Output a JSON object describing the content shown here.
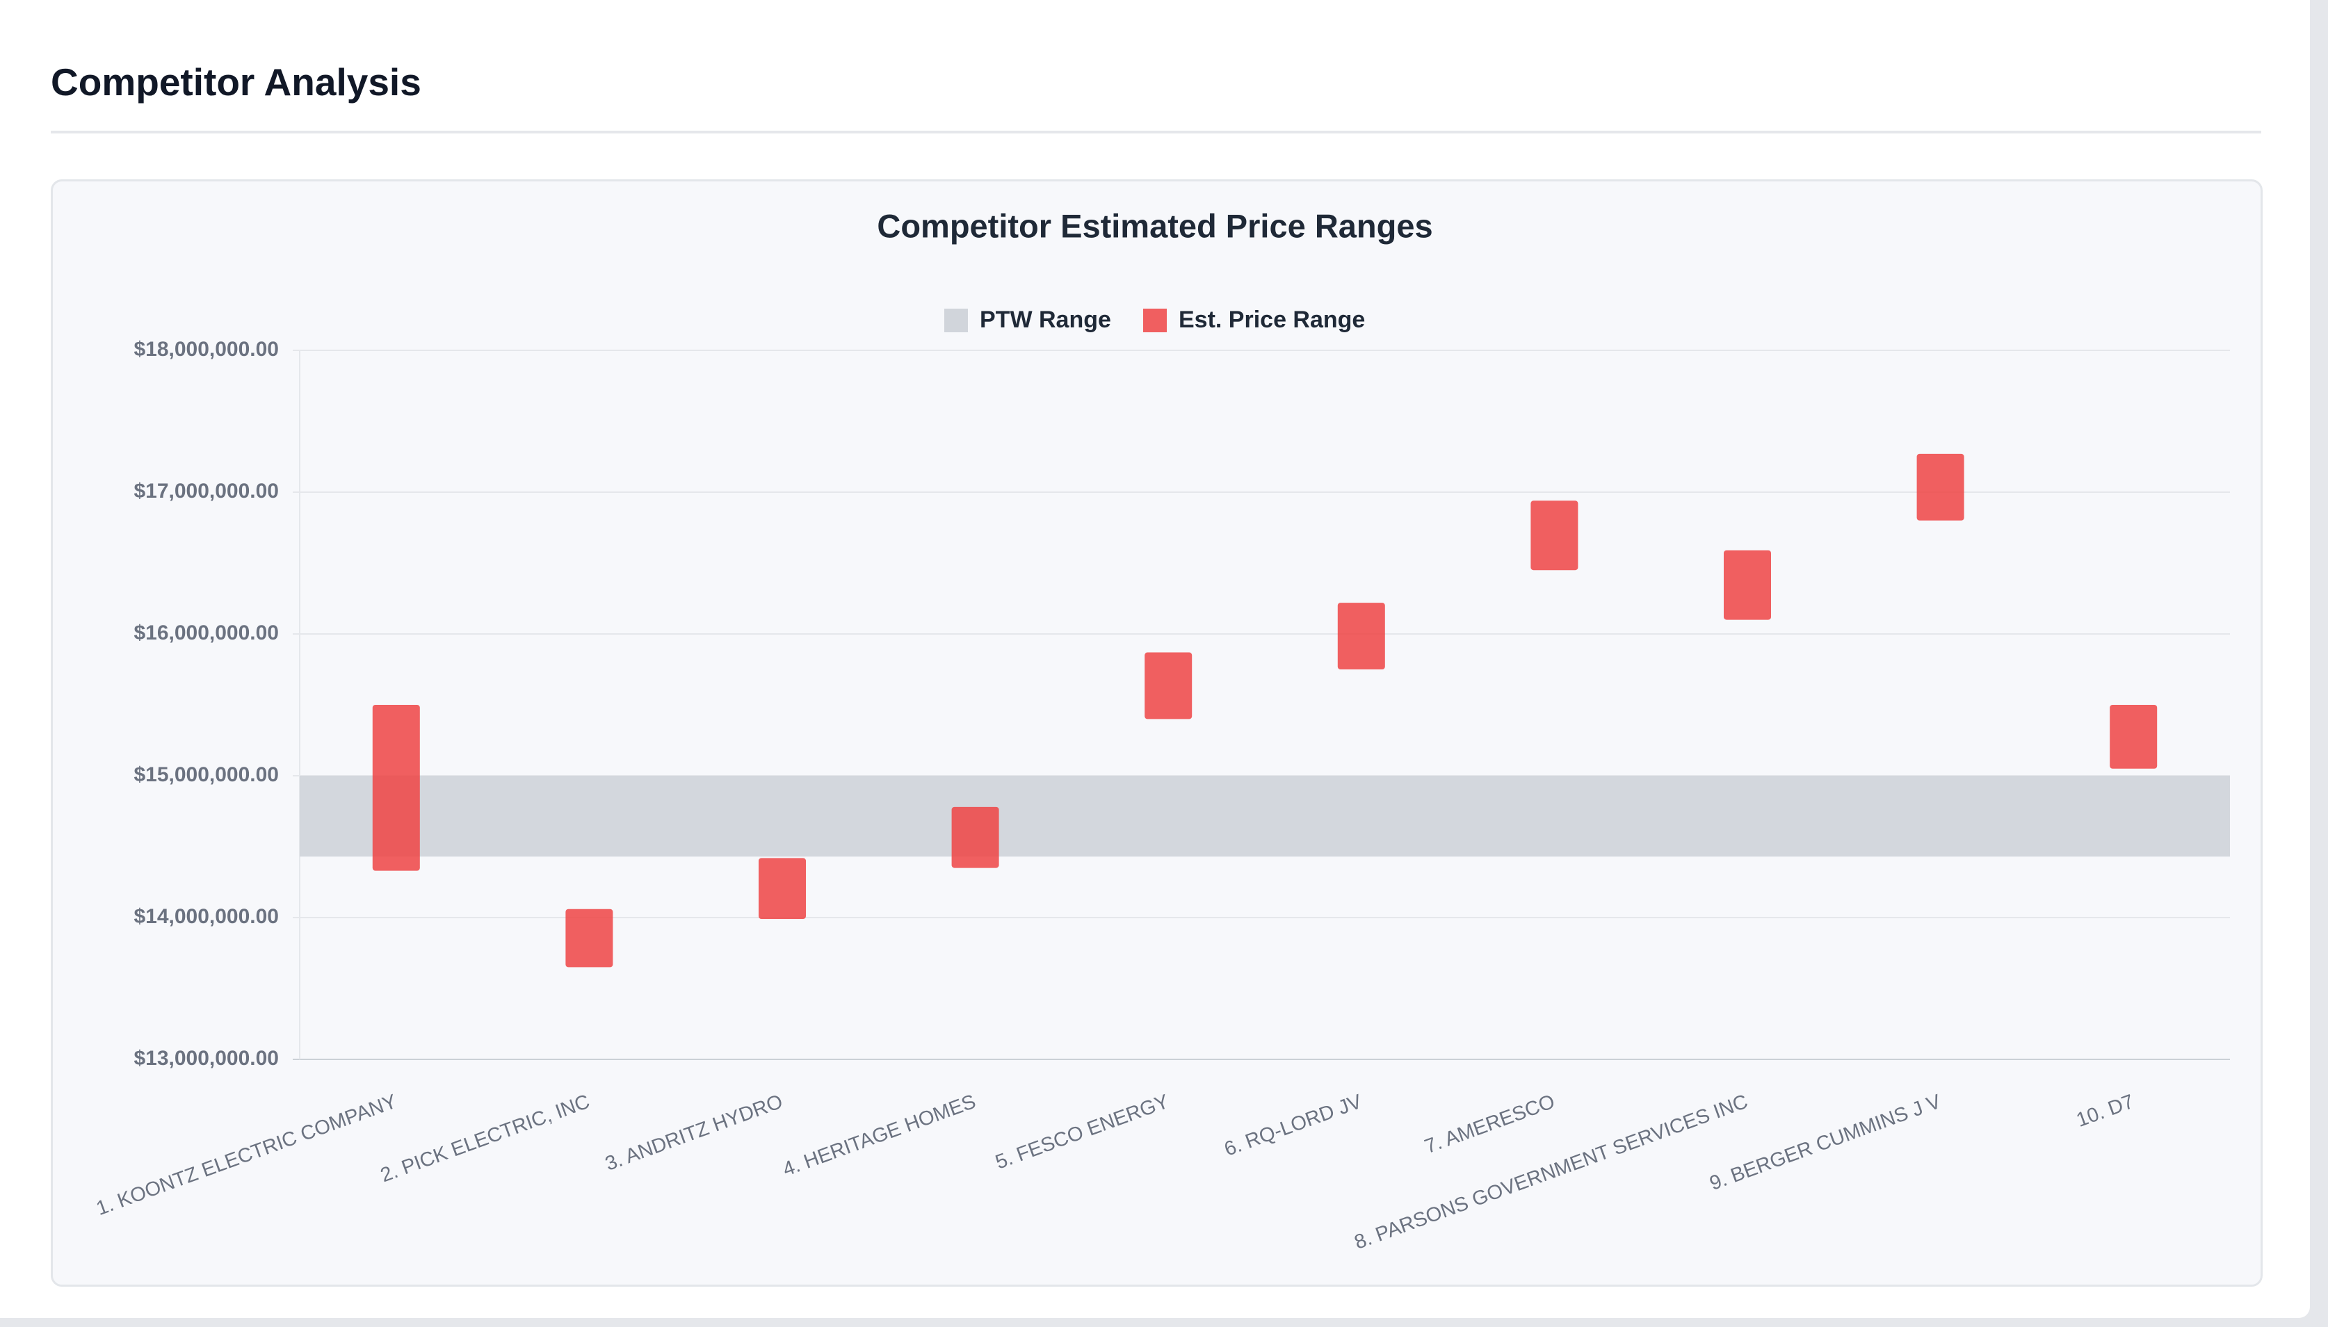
{
  "header": {
    "title": "Competitor Analysis"
  },
  "chart_data": {
    "type": "range_bar",
    "title": "Competitor Estimated Price Ranges",
    "categories": [
      "1. KOONTZ ELECTRIC COMPANY",
      "2. PICK ELECTRIC, INC",
      "3. ANDRITZ HYDRO",
      "4. HERITAGE HOMES",
      "5. FESCO ENERGY",
      "6. RQ-LORD JV",
      "7. AMERESCO",
      "8. PARSONS GOVERNMENT SERVICES INC",
      "9. BERGER CUMMINS J V",
      "10. D7"
    ],
    "series": [
      {
        "name": "Est. Price Range",
        "color": "#ef4444",
        "low": [
          14330000,
          13650000,
          13990000,
          14350000,
          15400000,
          15750000,
          16450000,
          16100000,
          16800000,
          15050000
        ],
        "high": [
          15500000,
          14060000,
          14420000,
          14780000,
          15870000,
          16220000,
          16940000,
          16590000,
          17270000,
          15500000
        ]
      }
    ],
    "band": {
      "name": "PTW Range",
      "color": "#d1d5db",
      "low": 14430000,
      "high": 15000000
    },
    "ylim": [
      13000000,
      18000000
    ],
    "yticks": [
      {
        "value": 13000000,
        "label": "$13,000,000.00"
      },
      {
        "value": 14000000,
        "label": "$14,000,000.00"
      },
      {
        "value": 15000000,
        "label": "$15,000,000.00"
      },
      {
        "value": 16000000,
        "label": "$16,000,000.00"
      },
      {
        "value": 17000000,
        "label": "$17,000,000.00"
      },
      {
        "value": 18000000,
        "label": "$18,000,000.00"
      }
    ],
    "grid": true
  }
}
